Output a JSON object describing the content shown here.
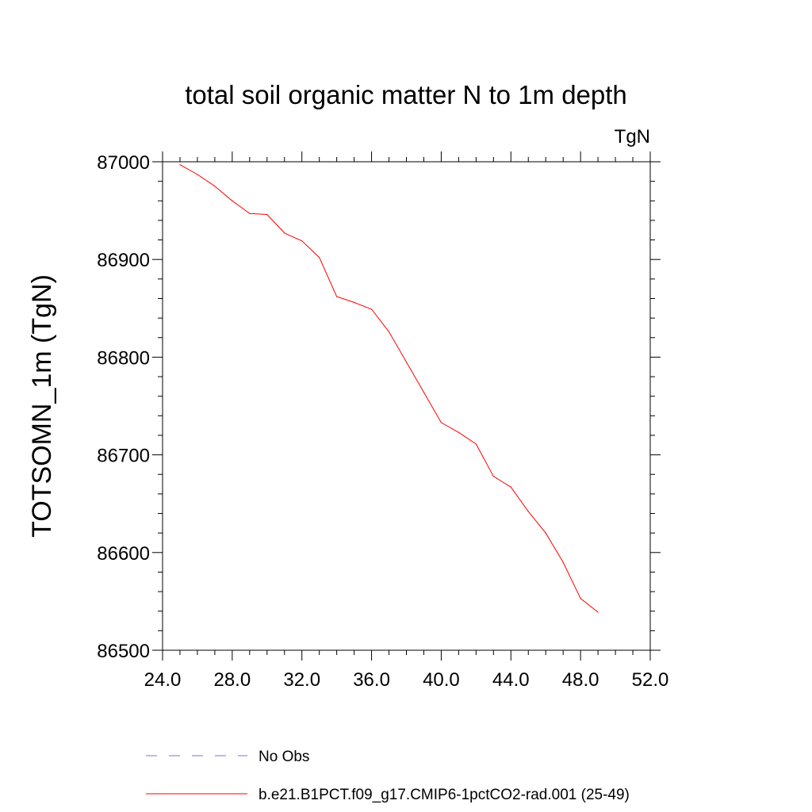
{
  "chart_data": {
    "type": "line",
    "title": "total soil organic matter N to 1m depth",
    "units_label": "TgN",
    "xlabel": "",
    "ylabel": "TOTSOMN_1m  (TgN)",
    "xlim": [
      24.0,
      52.0
    ],
    "ylim": [
      86500,
      87000
    ],
    "x_ticks": [
      "24.0",
      "28.0",
      "32.0",
      "36.0",
      "40.0",
      "44.0",
      "48.0",
      "52.0"
    ],
    "y_ticks": [
      "86500",
      "86600",
      "86700",
      "86800",
      "86900",
      "87000"
    ],
    "grid": false,
    "legend_position": "bottom",
    "series": [
      {
        "name": "b.e21.B1PCT.f09_g17.CMIP6-1pctCO2-rad.001 (25-49)",
        "color": "#ff0000",
        "style": "solid",
        "x": [
          25,
          26,
          27,
          28,
          29,
          30,
          31,
          32,
          33,
          34,
          35,
          36,
          37,
          38,
          39,
          40,
          41,
          42,
          43,
          44,
          45,
          46,
          47,
          48,
          49
        ],
        "y": [
          86997,
          86987,
          86975,
          86960,
          86947,
          86946,
          86927,
          86919,
          86902,
          86862,
          86856,
          86849,
          86826,
          86795,
          86764,
          86733,
          86723,
          86711,
          86678,
          86667,
          86642,
          86620,
          86590,
          86553,
          86539
        ]
      }
    ],
    "legend": [
      {
        "label": "No Obs",
        "color": "#7a7aca",
        "style": "dashed"
      },
      {
        "label": "b.e21.B1PCT.f09_g17.CMIP6-1pctCO2-rad.001 (25-49)",
        "color": "#ff0000",
        "style": "solid"
      }
    ]
  }
}
